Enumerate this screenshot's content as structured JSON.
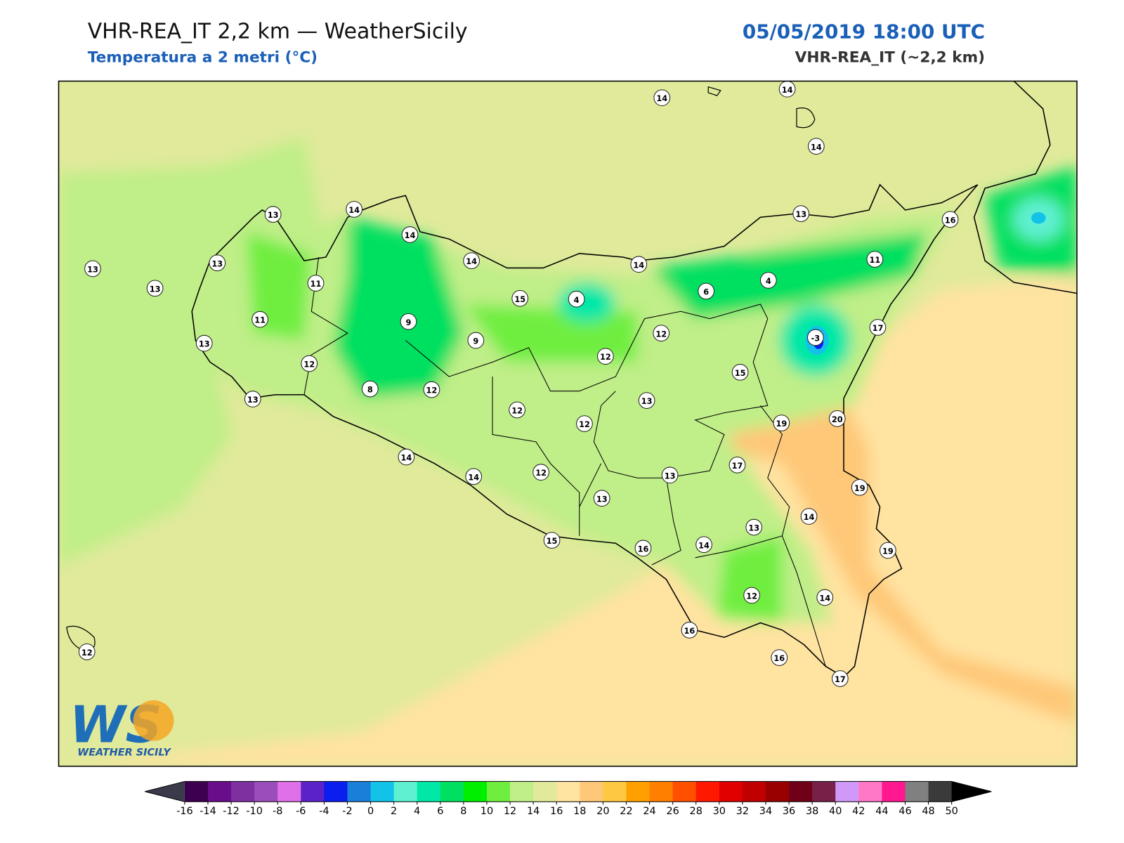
{
  "header": {
    "title": "VHR-REA_IT 2,2 km — WeatherSicily",
    "subtitle": "Temperatura a 2 metri (°C)",
    "datetime": "05/05/2019 18:00 UTC",
    "model": "VHR-REA_IT (~2,2 km)"
  },
  "map": {
    "stations": [
      13,
      14,
      14,
      14,
      13,
      13,
      13,
      11,
      11,
      13,
      12,
      13,
      9,
      9,
      8,
      12,
      15,
      4,
      14,
      14,
      14,
      14,
      13,
      16,
      11,
      4,
      6,
      12,
      12,
      -3,
      17,
      15,
      13,
      12,
      12,
      19,
      20,
      17,
      13,
      14,
      14,
      12,
      13,
      19,
      14,
      13,
      15,
      16,
      14,
      19,
      12,
      14,
      16,
      16,
      17,
      12
    ]
  },
  "logo": {
    "mark": "WS",
    "name": "WEATHER SICILY"
  },
  "colorbar": {
    "ticks": [
      -16,
      -14,
      -12,
      -10,
      -8,
      -6,
      -4,
      -2,
      0,
      2,
      4,
      6,
      8,
      10,
      12,
      14,
      16,
      18,
      20,
      22,
      24,
      26,
      28,
      30,
      32,
      34,
      36,
      38,
      40,
      42,
      44,
      46,
      48,
      50
    ],
    "colors": [
      "#3d0050",
      "#6a0d8a",
      "#7e2fa0",
      "#9b4dbb",
      "#e070e8",
      "#5a22c8",
      "#0a1ef0",
      "#1a7fd8",
      "#12c2e8",
      "#5ef0d0",
      "#00e8a8",
      "#00e060",
      "#00ee00",
      "#70ee40",
      "#c0ee88",
      "#e0ea9a",
      "#ffe3a0",
      "#fec878",
      "#fec840",
      "#ffa000",
      "#ff8000",
      "#ff5000",
      "#ff1800",
      "#e00000",
      "#c00000",
      "#980000",
      "#700018",
      "#782048",
      "#d098f8",
      "#ff78c8",
      "#ff1890",
      "#808080",
      "#3a3a3a"
    ],
    "under_color": "#3a3a4a",
    "over_color": "#000000"
  }
}
